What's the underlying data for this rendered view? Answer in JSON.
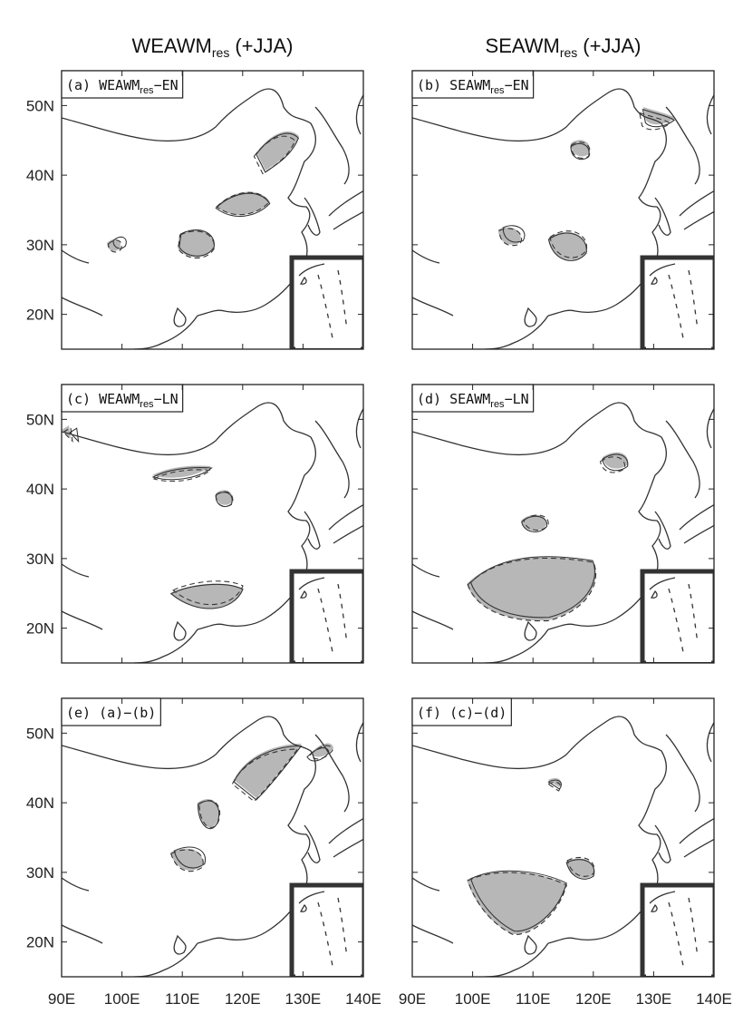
{
  "columns": [
    {
      "main": "WEAWM",
      "sub": "res",
      "suffix": "(+JJA)"
    },
    {
      "main": "SEAWM",
      "sub": "res",
      "suffix": "(+JJA)"
    }
  ],
  "panels": [
    {
      "label": "(a) WEAWM",
      "sub": "res",
      "suffix": "−EN"
    },
    {
      "label": "(b) SEAWM",
      "sub": "res",
      "suffix": "−EN"
    },
    {
      "label": "(c) WEAWM",
      "sub": "res",
      "suffix": "−LN"
    },
    {
      "label": "(d) SEAWM",
      "sub": "res",
      "suffix": "−LN"
    },
    {
      "label": "(e) (a)−(b)"
    },
    {
      "label": "(f) (c)−(d)"
    }
  ],
  "lon_range": [
    90,
    140
  ],
  "lat_range": [
    15,
    55
  ],
  "lon_ticks": [
    {
      "value": 90,
      "label": "90E"
    },
    {
      "value": 100,
      "label": "100E"
    },
    {
      "value": 110,
      "label": "110E"
    },
    {
      "value": 120,
      "label": "120E"
    },
    {
      "value": 130,
      "label": "130E"
    },
    {
      "value": 140,
      "label": "140E"
    }
  ],
  "lat_ticks": [
    {
      "value": 50,
      "label": "50N"
    },
    {
      "value": 40,
      "label": "40N"
    },
    {
      "value": 30,
      "label": "30N"
    },
    {
      "value": 20,
      "label": "20N"
    }
  ]
}
